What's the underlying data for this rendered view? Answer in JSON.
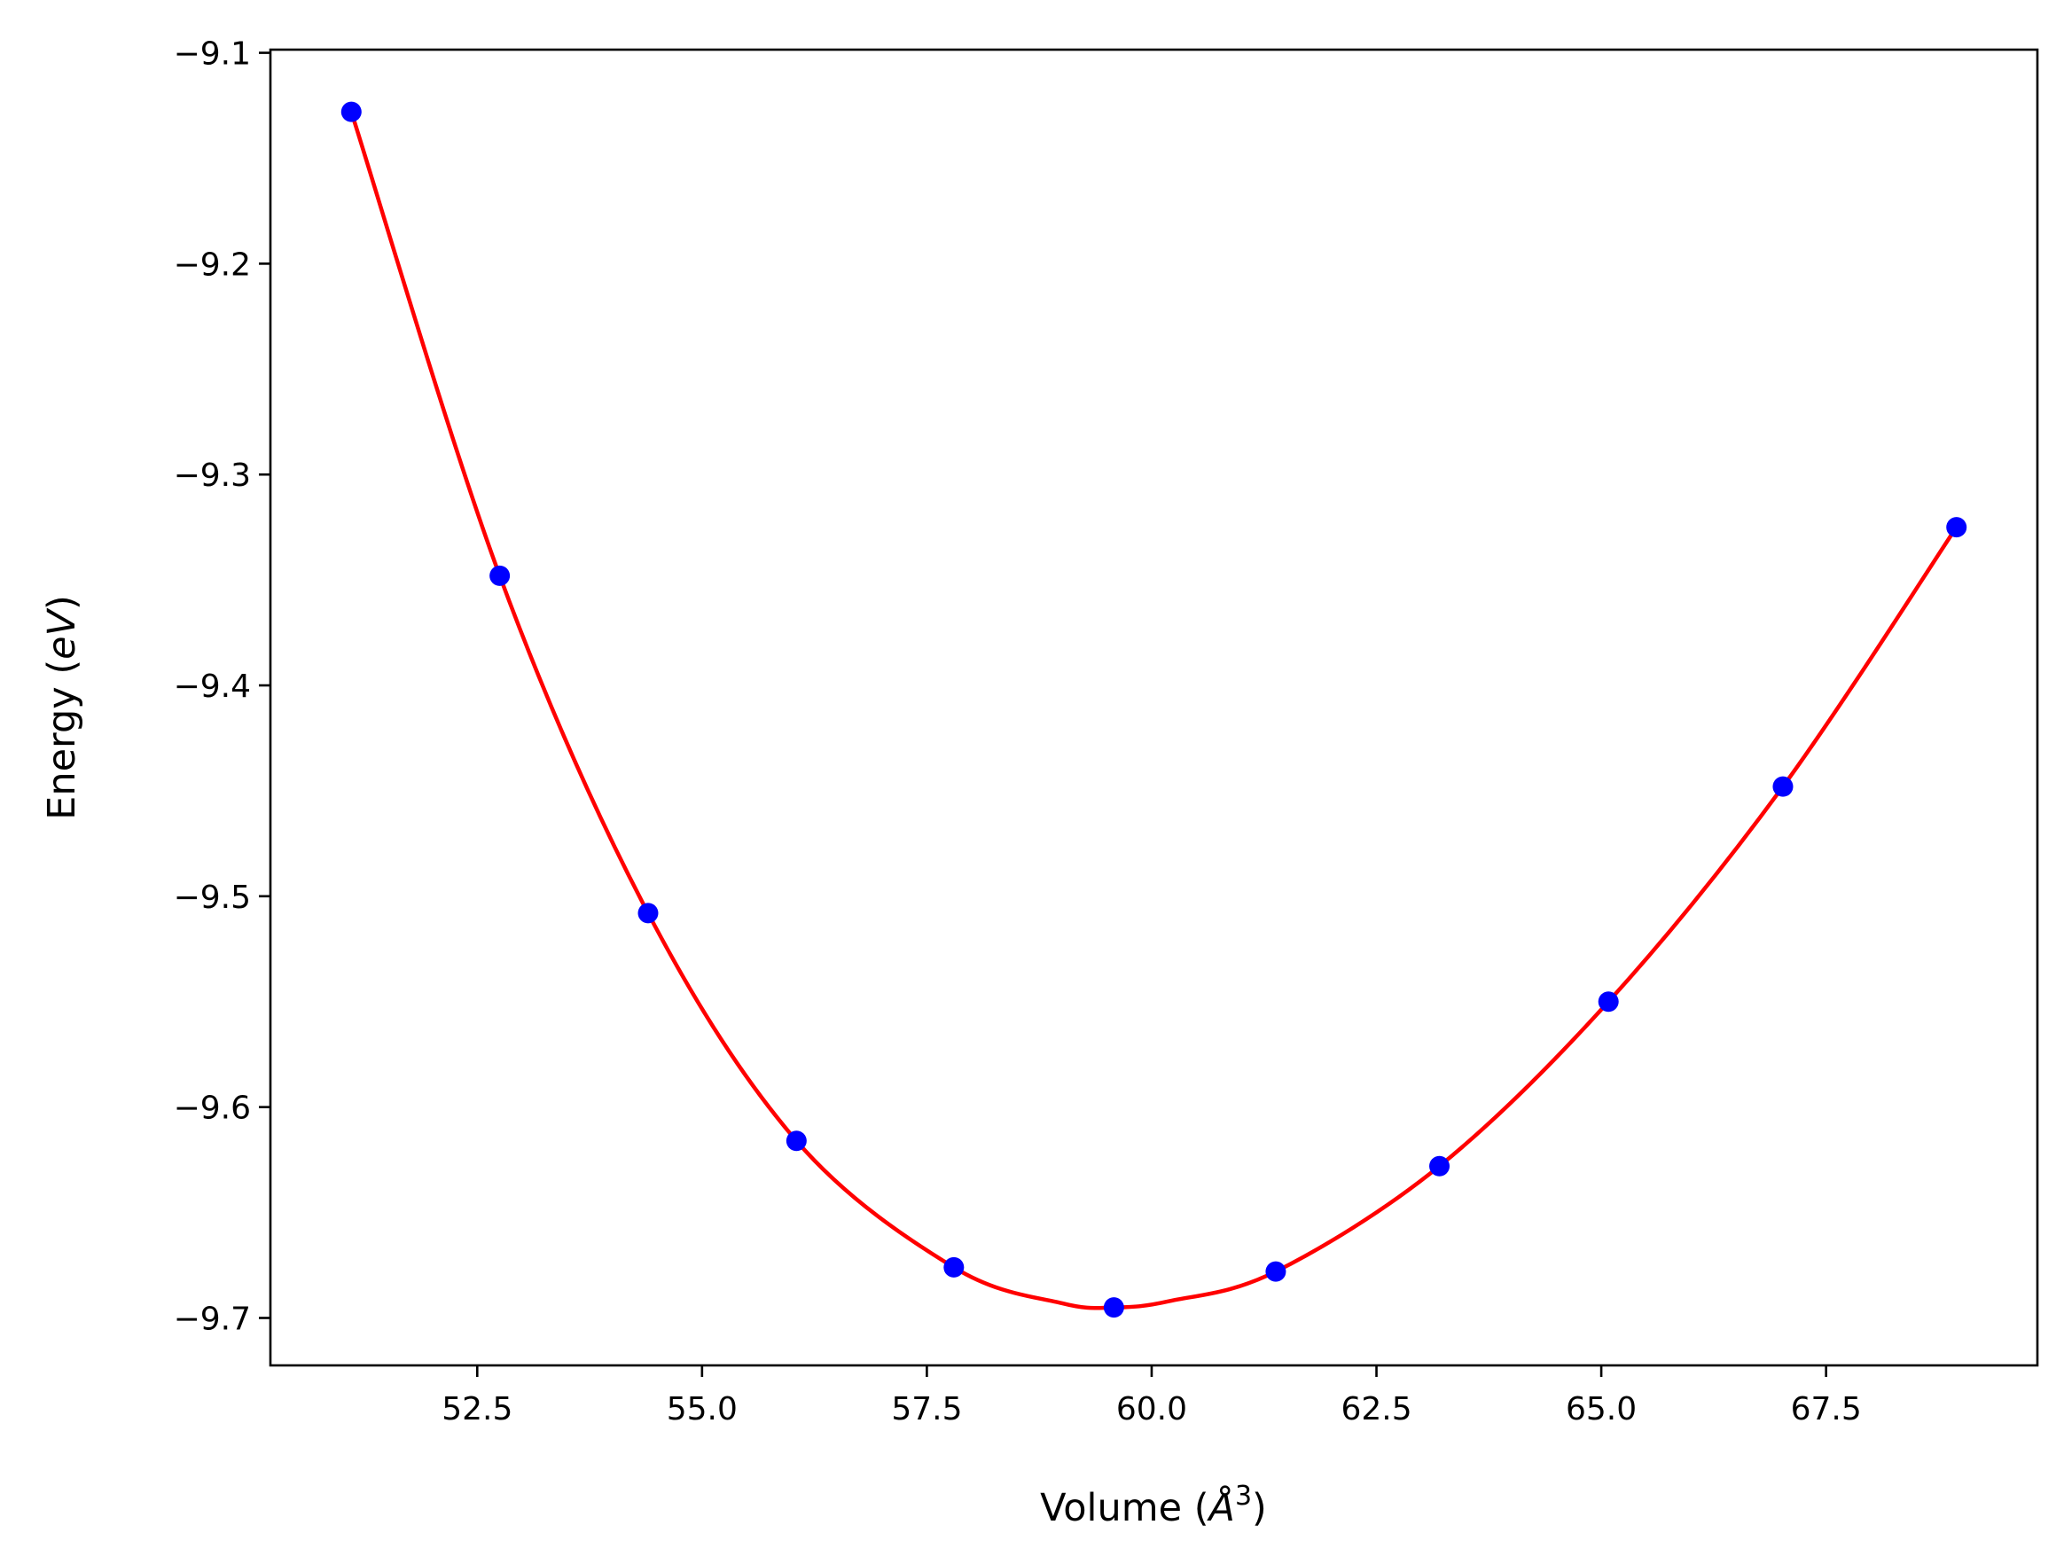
{
  "chart_data": {
    "type": "line",
    "title": "",
    "xlabel_parts": [
      "Volume (",
      "Å",
      "3",
      ")"
    ],
    "ylabel_parts": [
      "Energy (",
      "eV",
      ")"
    ],
    "xlim": [
      50.2,
      69.85
    ],
    "ylim": [
      -9.7225,
      -9.0985
    ],
    "xticks": [
      52.5,
      55.0,
      57.5,
      60.0,
      62.5,
      65.0,
      67.5
    ],
    "xtick_labels": [
      "52.5",
      "55.0",
      "57.5",
      "60.0",
      "62.5",
      "65.0",
      "67.5"
    ],
    "yticks": [
      -9.1,
      -9.2,
      -9.3,
      -9.4,
      -9.5,
      -9.6,
      -9.7
    ],
    "ytick_labels": [
      "−9.1",
      "−9.2",
      "−9.3",
      "−9.4",
      "−9.5",
      "−9.6",
      "−9.7"
    ],
    "grid": false,
    "series": [
      {
        "kind": "points",
        "color": "#0000ff",
        "x": [
          51.1,
          52.75,
          54.4,
          56.05,
          57.8,
          59.58,
          61.38,
          63.2,
          65.08,
          67.02,
          68.95
        ],
        "y": [
          -9.128,
          -9.348,
          -9.508,
          -9.616,
          -9.676,
          -9.695,
          -9.678,
          -9.628,
          -9.55,
          -9.448,
          -9.325
        ]
      },
      {
        "kind": "fit-curve",
        "color": "#ff0000",
        "x": [
          51.1,
          52.75,
          54.4,
          56.05,
          57.8,
          59.0,
          59.58,
          60.2,
          61.38,
          63.2,
          65.08,
          67.02,
          68.95
        ],
        "y": [
          -9.128,
          -9.348,
          -9.508,
          -9.616,
          -9.676,
          -9.693,
          -9.695,
          -9.692,
          -9.678,
          -9.628,
          -9.55,
          -9.448,
          -9.325
        ]
      }
    ]
  }
}
